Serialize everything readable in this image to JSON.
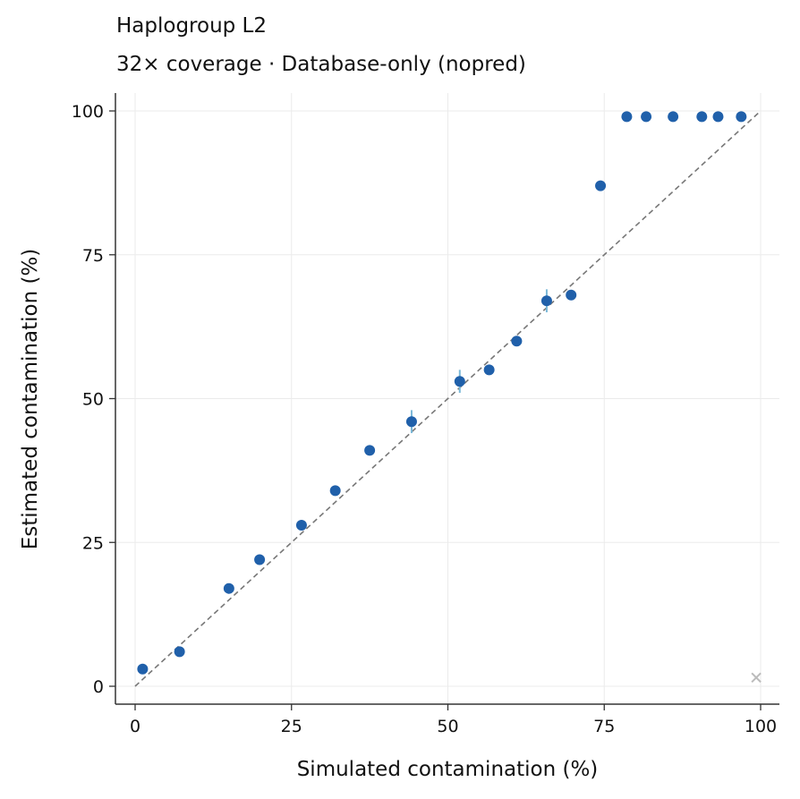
{
  "chart_data": {
    "type": "scatter",
    "title": "Haplogroup L2",
    "subtitle": "32× coverage  ·  Database-only (nopred)",
    "xlabel": "Simulated contamination (%)",
    "ylabel": "Estimated contamination (%)",
    "xlim": [
      -3,
      103
    ],
    "ylim": [
      -3,
      103
    ],
    "xticks": [
      "0",
      "25",
      "50",
      "75",
      "100"
    ],
    "yticks": [
      "0",
      "25",
      "50",
      "75",
      "100"
    ],
    "grid": true,
    "legend": "none",
    "reference_line": {
      "from": [
        0,
        0
      ],
      "to": [
        100,
        100
      ],
      "style": "dashed",
      "color": "#777777"
    },
    "point_color": "#2060aa",
    "errorbar_color": "#7ab8d8",
    "points": [
      {
        "x": 1.2,
        "y": 3,
        "err": 0
      },
      {
        "x": 7.1,
        "y": 6,
        "err": 0
      },
      {
        "x": 15.0,
        "y": 17,
        "err": 0
      },
      {
        "x": 19.9,
        "y": 22,
        "err": 0
      },
      {
        "x": 26.6,
        "y": 28,
        "err": 0
      },
      {
        "x": 32.0,
        "y": 34,
        "err": 0
      },
      {
        "x": 37.5,
        "y": 41,
        "err": 0
      },
      {
        "x": 44.2,
        "y": 46,
        "err": 2
      },
      {
        "x": 51.9,
        "y": 53,
        "err": 2
      },
      {
        "x": 56.6,
        "y": 55,
        "err": 0
      },
      {
        "x": 61.0,
        "y": 60,
        "err": 0
      },
      {
        "x": 65.8,
        "y": 67,
        "err": 2
      },
      {
        "x": 69.7,
        "y": 68,
        "err": 0
      },
      {
        "x": 74.4,
        "y": 87,
        "err": 0
      },
      {
        "x": 78.6,
        "y": 99,
        "err": 0
      },
      {
        "x": 81.7,
        "y": 99,
        "err": 0
      },
      {
        "x": 86.0,
        "y": 99,
        "err": 0
      },
      {
        "x": 90.6,
        "y": 99,
        "err": 0
      },
      {
        "x": 93.2,
        "y": 99,
        "err": 0
      },
      {
        "x": 96.9,
        "y": 99,
        "err": 0
      }
    ],
    "failed_points": [
      {
        "x": 99.3,
        "y": 1.5,
        "marker": "x",
        "color": "#bbbbbb"
      }
    ]
  }
}
